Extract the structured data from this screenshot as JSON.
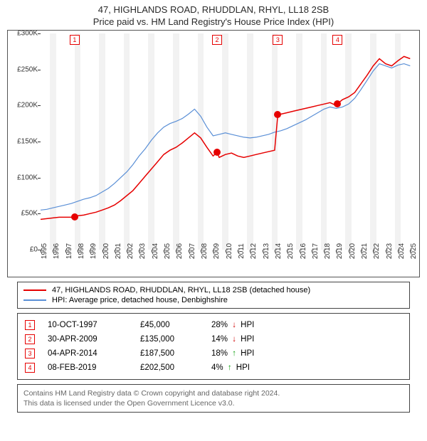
{
  "title_line1": "47, HIGHLANDS ROAD, RHUDDLAN, RHYL, LL18 2SB",
  "title_line2": "Price paid vs. HM Land Registry's House Price Index (HPI)",
  "chart": {
    "type": "line",
    "x_min": 1995,
    "x_max": 2025.5,
    "x_ticks": [
      1995,
      1996,
      1997,
      1998,
      1999,
      2000,
      2001,
      2002,
      2003,
      2004,
      2005,
      2006,
      2007,
      2008,
      2009,
      2010,
      2011,
      2012,
      2013,
      2014,
      2015,
      2016,
      2017,
      2018,
      2019,
      2020,
      2021,
      2022,
      2023,
      2024,
      2025
    ],
    "y_min": 0,
    "y_max": 300000,
    "y_ticks": [
      0,
      50000,
      100000,
      150000,
      200000,
      250000,
      300000
    ],
    "y_tick_labels": [
      "£0",
      "£50K",
      "£100K",
      "£150K",
      "£200K",
      "£250K",
      "£300K"
    ],
    "series": [
      {
        "id": "hpi",
        "label": "HPI: Average price, detached house, Denbighshire",
        "color": "#5a8fd6",
        "width": 1.2,
        "data": [
          [
            1995,
            55000
          ],
          [
            1995.5,
            56000
          ],
          [
            1996,
            58000
          ],
          [
            1996.5,
            60000
          ],
          [
            1997,
            62000
          ],
          [
            1997.5,
            64000
          ],
          [
            1998,
            67000
          ],
          [
            1998.5,
            70000
          ],
          [
            1999,
            72000
          ],
          [
            1999.5,
            75000
          ],
          [
            2000,
            80000
          ],
          [
            2000.5,
            85000
          ],
          [
            2001,
            92000
          ],
          [
            2001.5,
            100000
          ],
          [
            2002,
            108000
          ],
          [
            2002.5,
            118000
          ],
          [
            2003,
            130000
          ],
          [
            2003.5,
            140000
          ],
          [
            2004,
            152000
          ],
          [
            2004.5,
            162000
          ],
          [
            2005,
            170000
          ],
          [
            2005.5,
            175000
          ],
          [
            2006,
            178000
          ],
          [
            2006.5,
            182000
          ],
          [
            2007,
            188000
          ],
          [
            2007.5,
            195000
          ],
          [
            2008,
            185000
          ],
          [
            2008.5,
            170000
          ],
          [
            2009,
            158000
          ],
          [
            2009.5,
            160000
          ],
          [
            2010,
            162000
          ],
          [
            2010.5,
            160000
          ],
          [
            2011,
            158000
          ],
          [
            2011.5,
            156000
          ],
          [
            2012,
            155000
          ],
          [
            2012.5,
            156000
          ],
          [
            2013,
            158000
          ],
          [
            2013.5,
            160000
          ],
          [
            2014,
            163000
          ],
          [
            2014.5,
            165000
          ],
          [
            2015,
            168000
          ],
          [
            2015.5,
            172000
          ],
          [
            2016,
            176000
          ],
          [
            2016.5,
            180000
          ],
          [
            2017,
            185000
          ],
          [
            2017.5,
            190000
          ],
          [
            2018,
            195000
          ],
          [
            2018.5,
            198000
          ],
          [
            2019,
            196000
          ],
          [
            2019.5,
            198000
          ],
          [
            2020,
            202000
          ],
          [
            2020.5,
            210000
          ],
          [
            2021,
            222000
          ],
          [
            2021.5,
            235000
          ],
          [
            2022,
            248000
          ],
          [
            2022.5,
            258000
          ],
          [
            2023,
            255000
          ],
          [
            2023.5,
            252000
          ],
          [
            2024,
            256000
          ],
          [
            2024.5,
            258000
          ],
          [
            2025,
            255000
          ]
        ]
      },
      {
        "id": "property",
        "label": "47, HIGHLANDS ROAD, RHUDDLAN, RHYL, LL18 2SB (detached house)",
        "color": "#e60000",
        "width": 1.5,
        "data": [
          [
            1995,
            42000
          ],
          [
            1995.5,
            43000
          ],
          [
            1996,
            44000
          ],
          [
            1996.5,
            45000
          ],
          [
            1997,
            45000
          ],
          [
            1997.77,
            45000
          ],
          [
            1998,
            47000
          ],
          [
            1998.5,
            48000
          ],
          [
            1999,
            50000
          ],
          [
            1999.5,
            52000
          ],
          [
            2000,
            55000
          ],
          [
            2000.5,
            58000
          ],
          [
            2001,
            62000
          ],
          [
            2001.5,
            68000
          ],
          [
            2002,
            75000
          ],
          [
            2002.5,
            82000
          ],
          [
            2003,
            92000
          ],
          [
            2003.5,
            102000
          ],
          [
            2004,
            112000
          ],
          [
            2004.5,
            122000
          ],
          [
            2005,
            132000
          ],
          [
            2005.5,
            138000
          ],
          [
            2006,
            142000
          ],
          [
            2006.5,
            148000
          ],
          [
            2007,
            155000
          ],
          [
            2007.5,
            162000
          ],
          [
            2008,
            155000
          ],
          [
            2008.5,
            142000
          ],
          [
            2009,
            130000
          ],
          [
            2009.33,
            135000
          ],
          [
            2009.5,
            128000
          ],
          [
            2010,
            132000
          ],
          [
            2010.5,
            134000
          ],
          [
            2011,
            130000
          ],
          [
            2011.5,
            128000
          ],
          [
            2012,
            130000
          ],
          [
            2012.5,
            132000
          ],
          [
            2013,
            134000
          ],
          [
            2013.5,
            136000
          ],
          [
            2014,
            138000
          ],
          [
            2014.26,
            187500
          ],
          [
            2014.5,
            188000
          ],
          [
            2015,
            190000
          ],
          [
            2015.5,
            192000
          ],
          [
            2016,
            194000
          ],
          [
            2016.5,
            196000
          ],
          [
            2017,
            198000
          ],
          [
            2017.5,
            200000
          ],
          [
            2018,
            202000
          ],
          [
            2018.5,
            204000
          ],
          [
            2019,
            200000
          ],
          [
            2019.11,
            202500
          ],
          [
            2019.5,
            208000
          ],
          [
            2020,
            212000
          ],
          [
            2020.5,
            218000
          ],
          [
            2021,
            230000
          ],
          [
            2021.5,
            242000
          ],
          [
            2022,
            255000
          ],
          [
            2022.5,
            265000
          ],
          [
            2023,
            258000
          ],
          [
            2023.5,
            255000
          ],
          [
            2024,
            262000
          ],
          [
            2024.5,
            268000
          ],
          [
            2025,
            265000
          ]
        ]
      }
    ],
    "markers": [
      {
        "n": "1",
        "x": 1997.77,
        "y": 45000
      },
      {
        "n": "2",
        "x": 2009.33,
        "y": 135000
      },
      {
        "n": "3",
        "x": 2014.26,
        "y": 187500
      },
      {
        "n": "4",
        "x": 2019.11,
        "y": 202500
      }
    ],
    "marker_border": "#e60000",
    "marker_text": "#e60000",
    "dot_color": "#e60000",
    "grid_band_color": "#f2f2f2"
  },
  "legend": [
    {
      "color": "#e60000",
      "label": "47, HIGHLANDS ROAD, RHUDDLAN, RHYL, LL18 2SB (detached house)"
    },
    {
      "color": "#5a8fd6",
      "label": "HPI: Average price, detached house, Denbighshire"
    }
  ],
  "events": [
    {
      "n": "1",
      "date": "10-OCT-1997",
      "price": "£45,000",
      "pct": "28%",
      "dir": "down",
      "suffix": "HPI"
    },
    {
      "n": "2",
      "date": "30-APR-2009",
      "price": "£135,000",
      "pct": "14%",
      "dir": "down",
      "suffix": "HPI"
    },
    {
      "n": "3",
      "date": "04-APR-2014",
      "price": "£187,500",
      "pct": "18%",
      "dir": "up",
      "suffix": "HPI"
    },
    {
      "n": "4",
      "date": "08-FEB-2019",
      "price": "£202,500",
      "pct": "4%",
      "dir": "up",
      "suffix": "HPI"
    }
  ],
  "event_border": "#e60000",
  "event_text": "#e60000",
  "arrow_up_color": "#10a010",
  "arrow_down_color": "#d00000",
  "footer_line1": "Contains HM Land Registry data © Crown copyright and database right 2024.",
  "footer_line2": "This data is licensed under the Open Government Licence v3.0."
}
